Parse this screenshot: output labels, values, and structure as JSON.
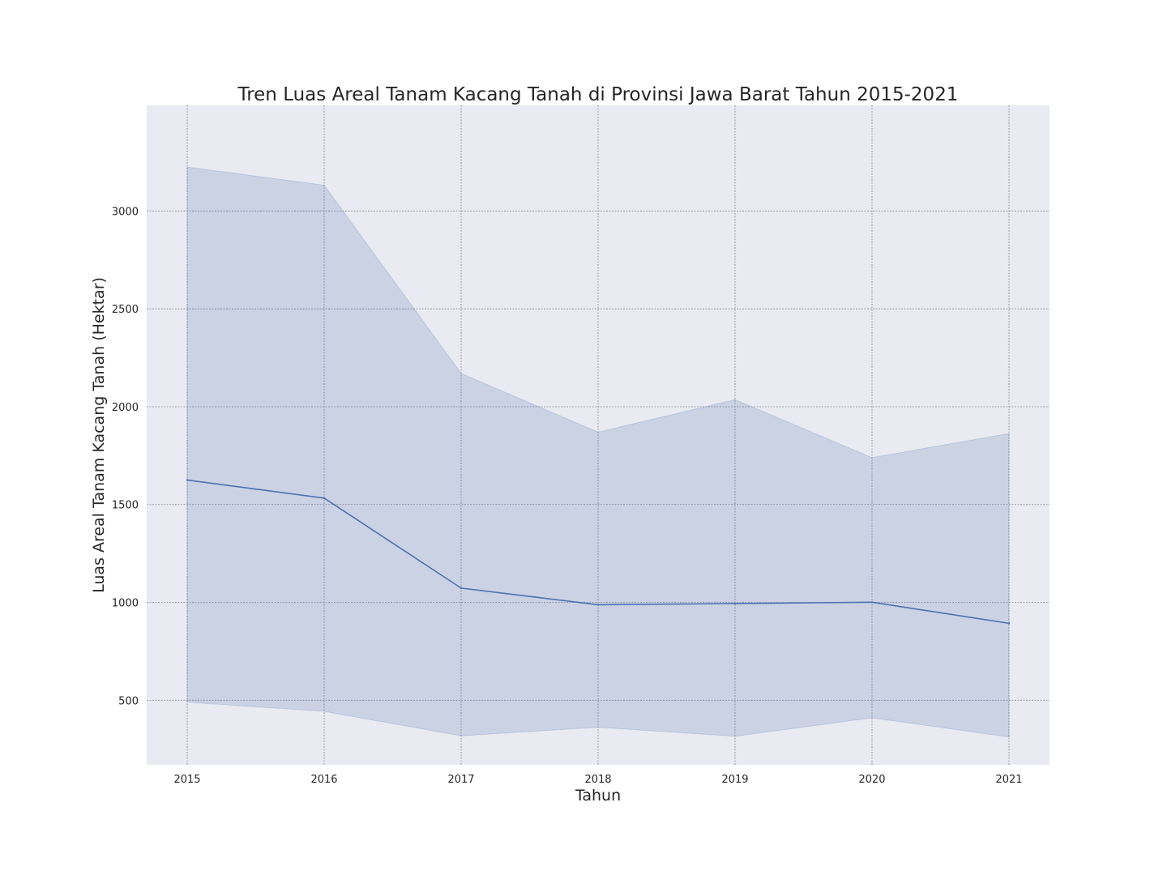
{
  "chart_data": {
    "type": "line",
    "title": "Tren Luas Areal Tanam Kacang Tanah di Provinsi Jawa Barat Tahun 2015-2021",
    "xlabel": "Tahun",
    "ylabel": "Luas Areal Tanam Kacang Tanah (Hektar)",
    "categories": [
      "2015",
      "2016",
      "2017",
      "2018",
      "2019",
      "2020",
      "2021"
    ],
    "series": [
      {
        "values": [
          1625,
          1533,
          1073,
          988,
          994,
          1001,
          893
        ],
        "band_upper": [
          3225,
          3132,
          2170,
          1870,
          2036,
          1740,
          1863
        ],
        "band_lower": [
          490,
          443,
          318,
          362,
          316,
          410,
          312
        ]
      }
    ],
    "yticks": [
      500,
      1000,
      1500,
      2000,
      2500,
      3000
    ],
    "ylim": [
      170,
      3540
    ],
    "grid": true,
    "colors": {
      "background": "#EAEAF2",
      "line": "#4C72B0",
      "band": "#4C72B0"
    }
  }
}
